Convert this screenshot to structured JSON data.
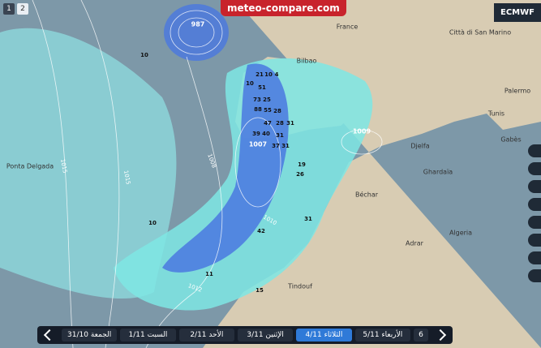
{
  "header": {
    "brand": "meteo-compare.com",
    "model": "ECMWF",
    "views": [
      "1",
      "2"
    ]
  },
  "timeline": {
    "days": [
      "الجمعة 31/10",
      "السبت 1/11",
      "الأحد 2/11",
      "الإثنين 3/11",
      "الثلاثاء 4/11",
      "الأربعاء 5/11",
      "6"
    ],
    "active": 4
  },
  "places": [
    "Ponta Delgada",
    "France",
    "Bilbao",
    "Città di San Marino",
    "Palermo",
    "Tunis",
    "Gabès",
    "Djelfa",
    "Ghardaïa",
    "Béchar",
    "Algeria",
    "Adrar",
    "Tindouf"
  ],
  "pressure_centers": [
    "987",
    "1007",
    "1009"
  ],
  "isobar_labels": [
    "1010",
    "1015",
    "1012",
    "1008",
    "1015"
  ],
  "precip_labels": [
    "21",
    "10",
    "4",
    "10",
    "51",
    "73",
    "25",
    "88",
    "55",
    "28",
    "28",
    "47",
    "39",
    "40",
    "31",
    "37",
    "31",
    "31",
    "26",
    "19",
    "31",
    "42",
    "15",
    "11",
    "10",
    "10"
  ]
}
